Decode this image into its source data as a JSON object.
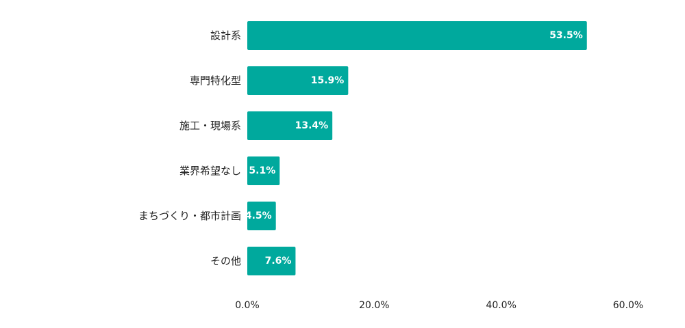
{
  "chart_data": {
    "type": "bar",
    "orientation": "horizontal",
    "title": "",
    "xlabel": "",
    "ylabel": "",
    "categories": [
      "設計系",
      "専門特化型",
      "施工・現場系",
      "業界希望なし",
      "まちづくり・都市計画",
      "その他"
    ],
    "values": [
      53.5,
      15.9,
      13.4,
      5.1,
      4.5,
      7.6
    ],
    "value_labels": [
      "53.5%",
      "15.9%",
      "13.4%",
      "5.1%",
      "4.5%",
      "7.6%"
    ],
    "xlim": [
      0,
      60
    ],
    "x_ticks": [
      0,
      20,
      40,
      60
    ],
    "x_tick_labels": [
      "0.0%",
      "20.0%",
      "40.0%",
      "60.0%"
    ],
    "grid": false,
    "bar_color": "#00a99d"
  }
}
